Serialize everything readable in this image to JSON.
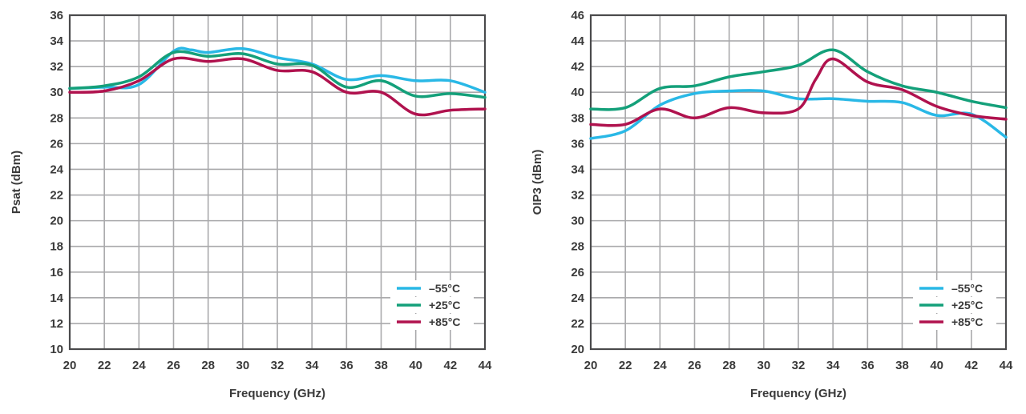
{
  "chart_data": [
    {
      "type": "line",
      "title": "",
      "xlabel": "Frequency (GHz)",
      "ylabel": "Psat (dBm)",
      "xlim": [
        20,
        44
      ],
      "ylim": [
        10,
        36
      ],
      "xticks": [
        20,
        22,
        24,
        26,
        28,
        30,
        32,
        34,
        36,
        38,
        40,
        42,
        44
      ],
      "yticks": [
        10,
        12,
        14,
        16,
        18,
        20,
        22,
        24,
        26,
        28,
        30,
        32,
        34,
        36
      ],
      "grid": true,
      "legend_position": "bottom-right",
      "series": [
        {
          "name": "–55°C",
          "color": "#29b8e6",
          "x": [
            20,
            22,
            24,
            26,
            27,
            28,
            30,
            32,
            34,
            36,
            38,
            40,
            42,
            44
          ],
          "y": [
            30.3,
            30.4,
            30.6,
            33.2,
            33.3,
            33.1,
            33.4,
            32.7,
            32.2,
            31.0,
            31.3,
            30.9,
            30.9,
            30.0
          ]
        },
        {
          "name": "+25°C",
          "color": "#14a07a",
          "x": [
            20,
            22,
            24,
            26,
            28,
            30,
            32,
            34,
            36,
            38,
            40,
            42,
            44
          ],
          "y": [
            30.3,
            30.5,
            31.2,
            33.1,
            32.8,
            33.0,
            32.2,
            32.1,
            30.4,
            30.9,
            29.7,
            29.9,
            29.6
          ]
        },
        {
          "name": "+85°C",
          "color": "#b0124e",
          "x": [
            20,
            22,
            24,
            26,
            28,
            30,
            32,
            34,
            36,
            38,
            40,
            42,
            44
          ],
          "y": [
            30.0,
            30.1,
            30.9,
            32.6,
            32.4,
            32.6,
            31.7,
            31.6,
            30.0,
            30.0,
            28.3,
            28.6,
            28.7
          ]
        }
      ]
    },
    {
      "type": "line",
      "title": "",
      "xlabel": "Frequency (GHz)",
      "ylabel": "OIP3 (dBm)",
      "xlim": [
        20,
        44
      ],
      "ylim": [
        20,
        46
      ],
      "xticks": [
        20,
        22,
        24,
        26,
        28,
        30,
        32,
        34,
        36,
        38,
        40,
        42,
        44
      ],
      "yticks": [
        20,
        22,
        24,
        26,
        28,
        30,
        32,
        34,
        36,
        38,
        40,
        42,
        44,
        46
      ],
      "grid": true,
      "legend_position": "bottom-right",
      "series": [
        {
          "name": "–55°C",
          "color": "#29b8e6",
          "x": [
            20,
            22,
            24,
            26,
            28,
            30,
            32,
            34,
            36,
            38,
            40,
            42,
            44
          ],
          "y": [
            36.4,
            37.0,
            39.0,
            39.9,
            40.1,
            40.1,
            39.5,
            39.5,
            39.3,
            39.2,
            38.2,
            38.3,
            36.5
          ]
        },
        {
          "name": "+25°C",
          "color": "#14a07a",
          "x": [
            20,
            22,
            24,
            26,
            28,
            30,
            32,
            34,
            36,
            38,
            40,
            42,
            44
          ],
          "y": [
            38.7,
            38.8,
            40.3,
            40.5,
            41.2,
            41.6,
            42.1,
            43.3,
            41.6,
            40.5,
            40.0,
            39.3,
            38.8
          ]
        },
        {
          "name": "+85°C",
          "color": "#b0124e",
          "x": [
            20,
            22,
            24,
            26,
            28,
            30,
            32,
            33,
            34,
            36,
            38,
            40,
            42,
            44
          ],
          "y": [
            37.5,
            37.5,
            38.7,
            38.0,
            38.8,
            38.4,
            38.7,
            41.0,
            42.6,
            40.8,
            40.2,
            38.9,
            38.2,
            37.9
          ]
        }
      ]
    }
  ]
}
